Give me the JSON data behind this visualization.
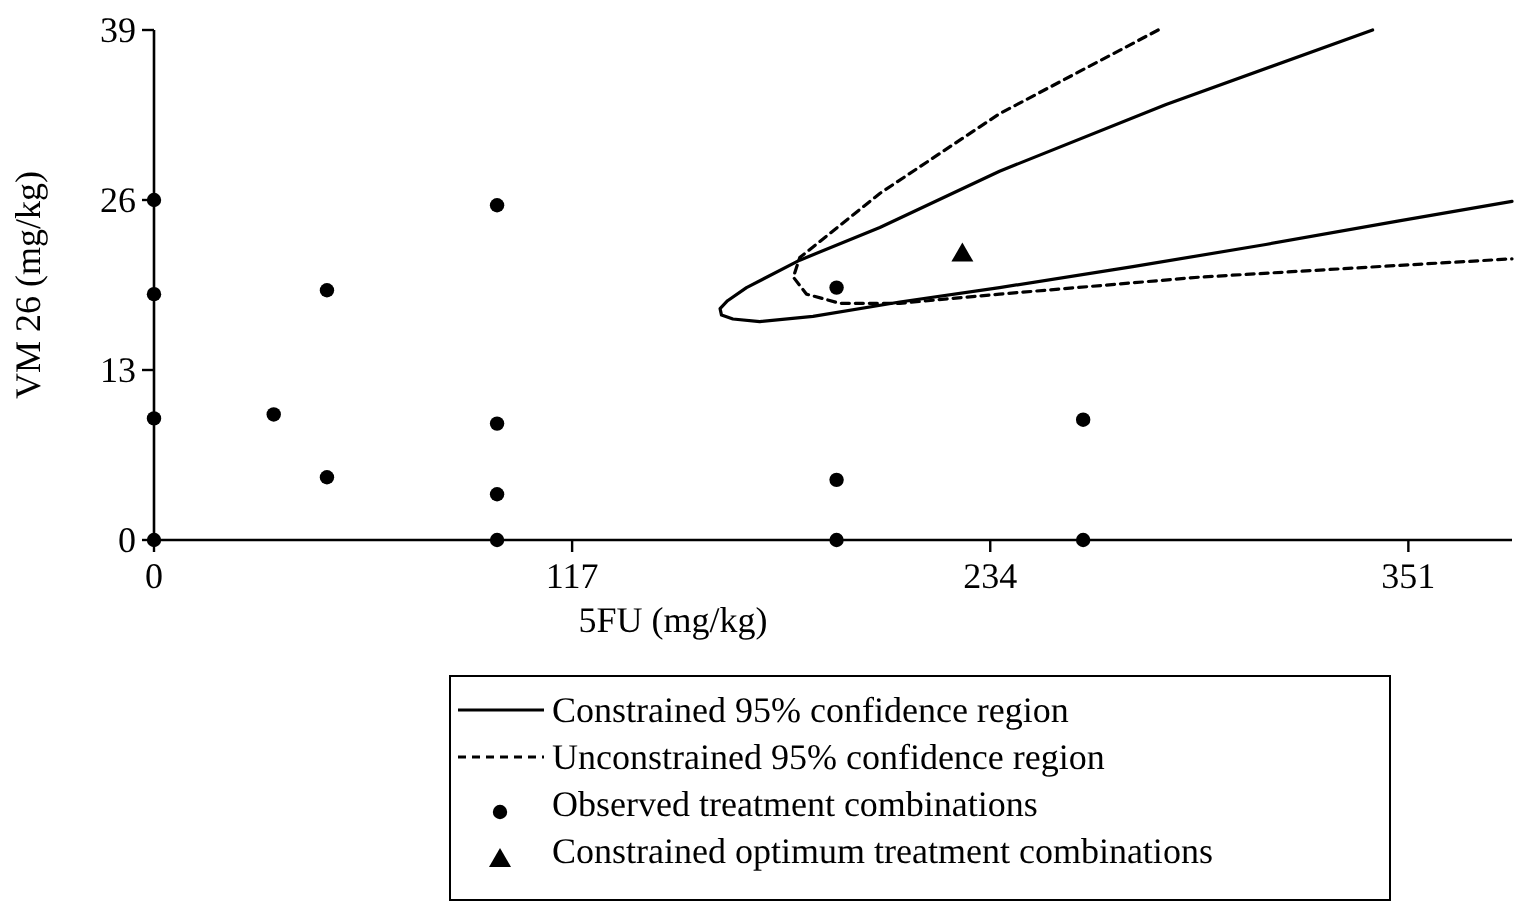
{
  "chart_data": {
    "type": "scatter",
    "xlabel": "5FU (mg/kg)",
    "ylabel": "VM 26 (mg/kg)",
    "xlim": [
      0,
      380
    ],
    "xticks": [
      0,
      117,
      234,
      351
    ],
    "ylim": [
      0,
      39
    ],
    "yticks": [
      0,
      13,
      26,
      39
    ],
    "grid": false,
    "legend": "bottom",
    "series": [
      {
        "name": "Constrained 95% confidence region",
        "type": "line",
        "line_style": "solid",
        "marker": "none",
        "color": "#000000",
        "x": [
          341,
          283.2,
          236.6,
          203.1,
          180.7,
          165.8,
          160.5,
          158.4,
          158.8,
          162,
          169.5,
          184.4,
          208.7,
          236.6,
          273.9,
          311.1,
          348.4,
          380
        ],
        "values": [
          39,
          33.3,
          28.2,
          23.9,
          21.4,
          19.3,
          18.3,
          17.7,
          17.2,
          16.9,
          16.7,
          17.1,
          18.2,
          19.3,
          20.9,
          22.6,
          24.4,
          25.9
        ]
      },
      {
        "name": "Unconstrained 95% confidence region",
        "type": "line",
        "line_style": "dashed",
        "marker": "none",
        "color": "#000000",
        "x": [
          281,
          236.6,
          203.1,
          180.7,
          178.9,
          182.6,
          191.9,
          208.7,
          236.6,
          292.5,
          348.4,
          380
        ],
        "values": [
          39,
          32.6,
          26.5,
          21.6,
          20.1,
          18.8,
          18.1,
          18.1,
          18.8,
          20.1,
          21.0,
          21.5
        ]
      },
      {
        "name": "Observed treatment combinations",
        "type": "scatter",
        "marker": "circle",
        "color": "#000000",
        "x": [
          0,
          0,
          0,
          0,
          33.5,
          48.4,
          48.4,
          96,
          96,
          96,
          96,
          191,
          191,
          191,
          260,
          260
        ],
        "values": [
          0,
          9.3,
          18.8,
          26,
          9.6,
          4.8,
          19.1,
          0,
          3.5,
          8.9,
          25.6,
          0,
          4.6,
          19.3,
          0,
          9.2
        ]
      },
      {
        "name": "Constrained optimum treatment combinations",
        "type": "scatter",
        "marker": "triangle",
        "color": "#000000",
        "x": [
          226.2
        ],
        "values": [
          21.9
        ]
      }
    ]
  }
}
